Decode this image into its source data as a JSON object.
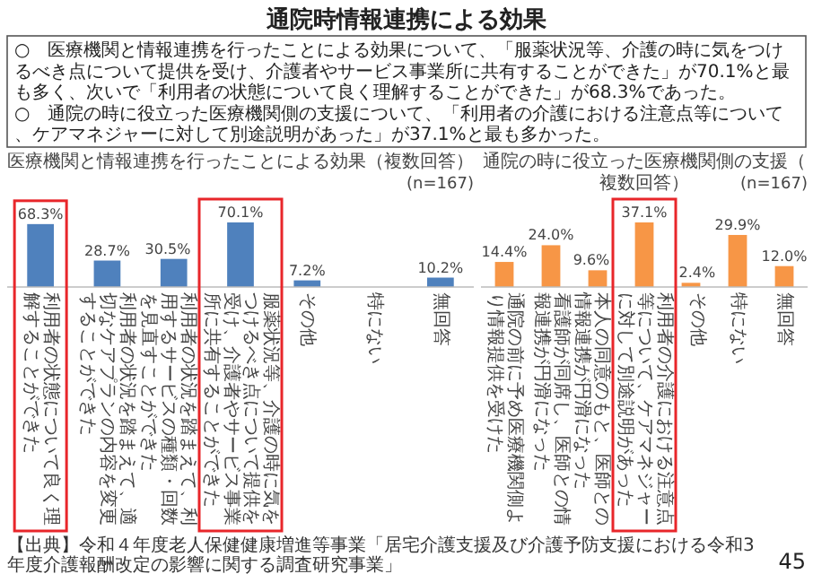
{
  "chart_data": [
    {
      "type": "other",
      "title": "通院時情報連携による効果",
      "annotations": [
        "○　医療機関と情報連携を行ったことによる効果について、「服薬状況等、介護の時に気をつけるべき点について提供を受け、介護者やサービス事業所に共有することができた」が70.1%と最も多く、次いで「利用者の状態について良く理解することができた」が68.3%であった。",
        "○　通院の時に役立った医療機関側の支援について、「利用者の介護における注意点等について、ケアマネジャーに対して別途説明があった」が37.1%と最も多かった。",
        "【出典】令和４年度老人保健健康増進等事業「居宅介護支援及び介護予防支援における令和3年度介護報酬改定の影響に関する調査研究事業」",
        "45"
      ]
    },
    {
      "type": "bar",
      "title": "医療機関と情報連携を行ったことによる効果（複数回答）",
      "subtitle": "(n=167)",
      "categories": [
        "利用者の状態について良く理解することができた",
        "利用者の状況を踏まえて、適切なケアプランの内容を変更することができた",
        "利用者の状況を踏まえて、利用するサービスの種類・回数を見直すことができた",
        "服薬状況等、介護の時に気をつけるべき点について提供を受け、介護者やサービス事業所に共有することができた",
        "その他",
        "特にない",
        "無回答"
      ],
      "values": [
        68.3,
        28.7,
        30.5,
        70.1,
        7.2,
        null,
        10.2
      ],
      "value_labels": [
        "68.3%",
        "28.7%",
        "30.5%",
        "70.1%",
        "7.2%",
        null,
        "10.2%"
      ],
      "color": "#4f81bd"
    },
    {
      "type": "bar",
      "title": "通院の時に役立った医療機関側の支援（複数回答）",
      "subtitle": "(n=167)",
      "categories": [
        "通院の前に予め医療機関側より情報提供を受けた",
        "看護師が同席し、医師との情報連携が円滑になった",
        "本人の同意のもと、医師との情報連携が円滑になった",
        "利用者の介護における注意点等について、ケアマネジャーに対して別途説明があった",
        "その他",
        "特にない",
        "無回答"
      ],
      "values": [
        14.4,
        24.0,
        9.6,
        37.1,
        2.4,
        29.9,
        12.0
      ],
      "value_labels": [
        "14.4%",
        "24.0%",
        "9.6%",
        "37.1%",
        "2.4%",
        "29.9%",
        "12.0%"
      ],
      "color": "#f79646"
    }
  ]
}
